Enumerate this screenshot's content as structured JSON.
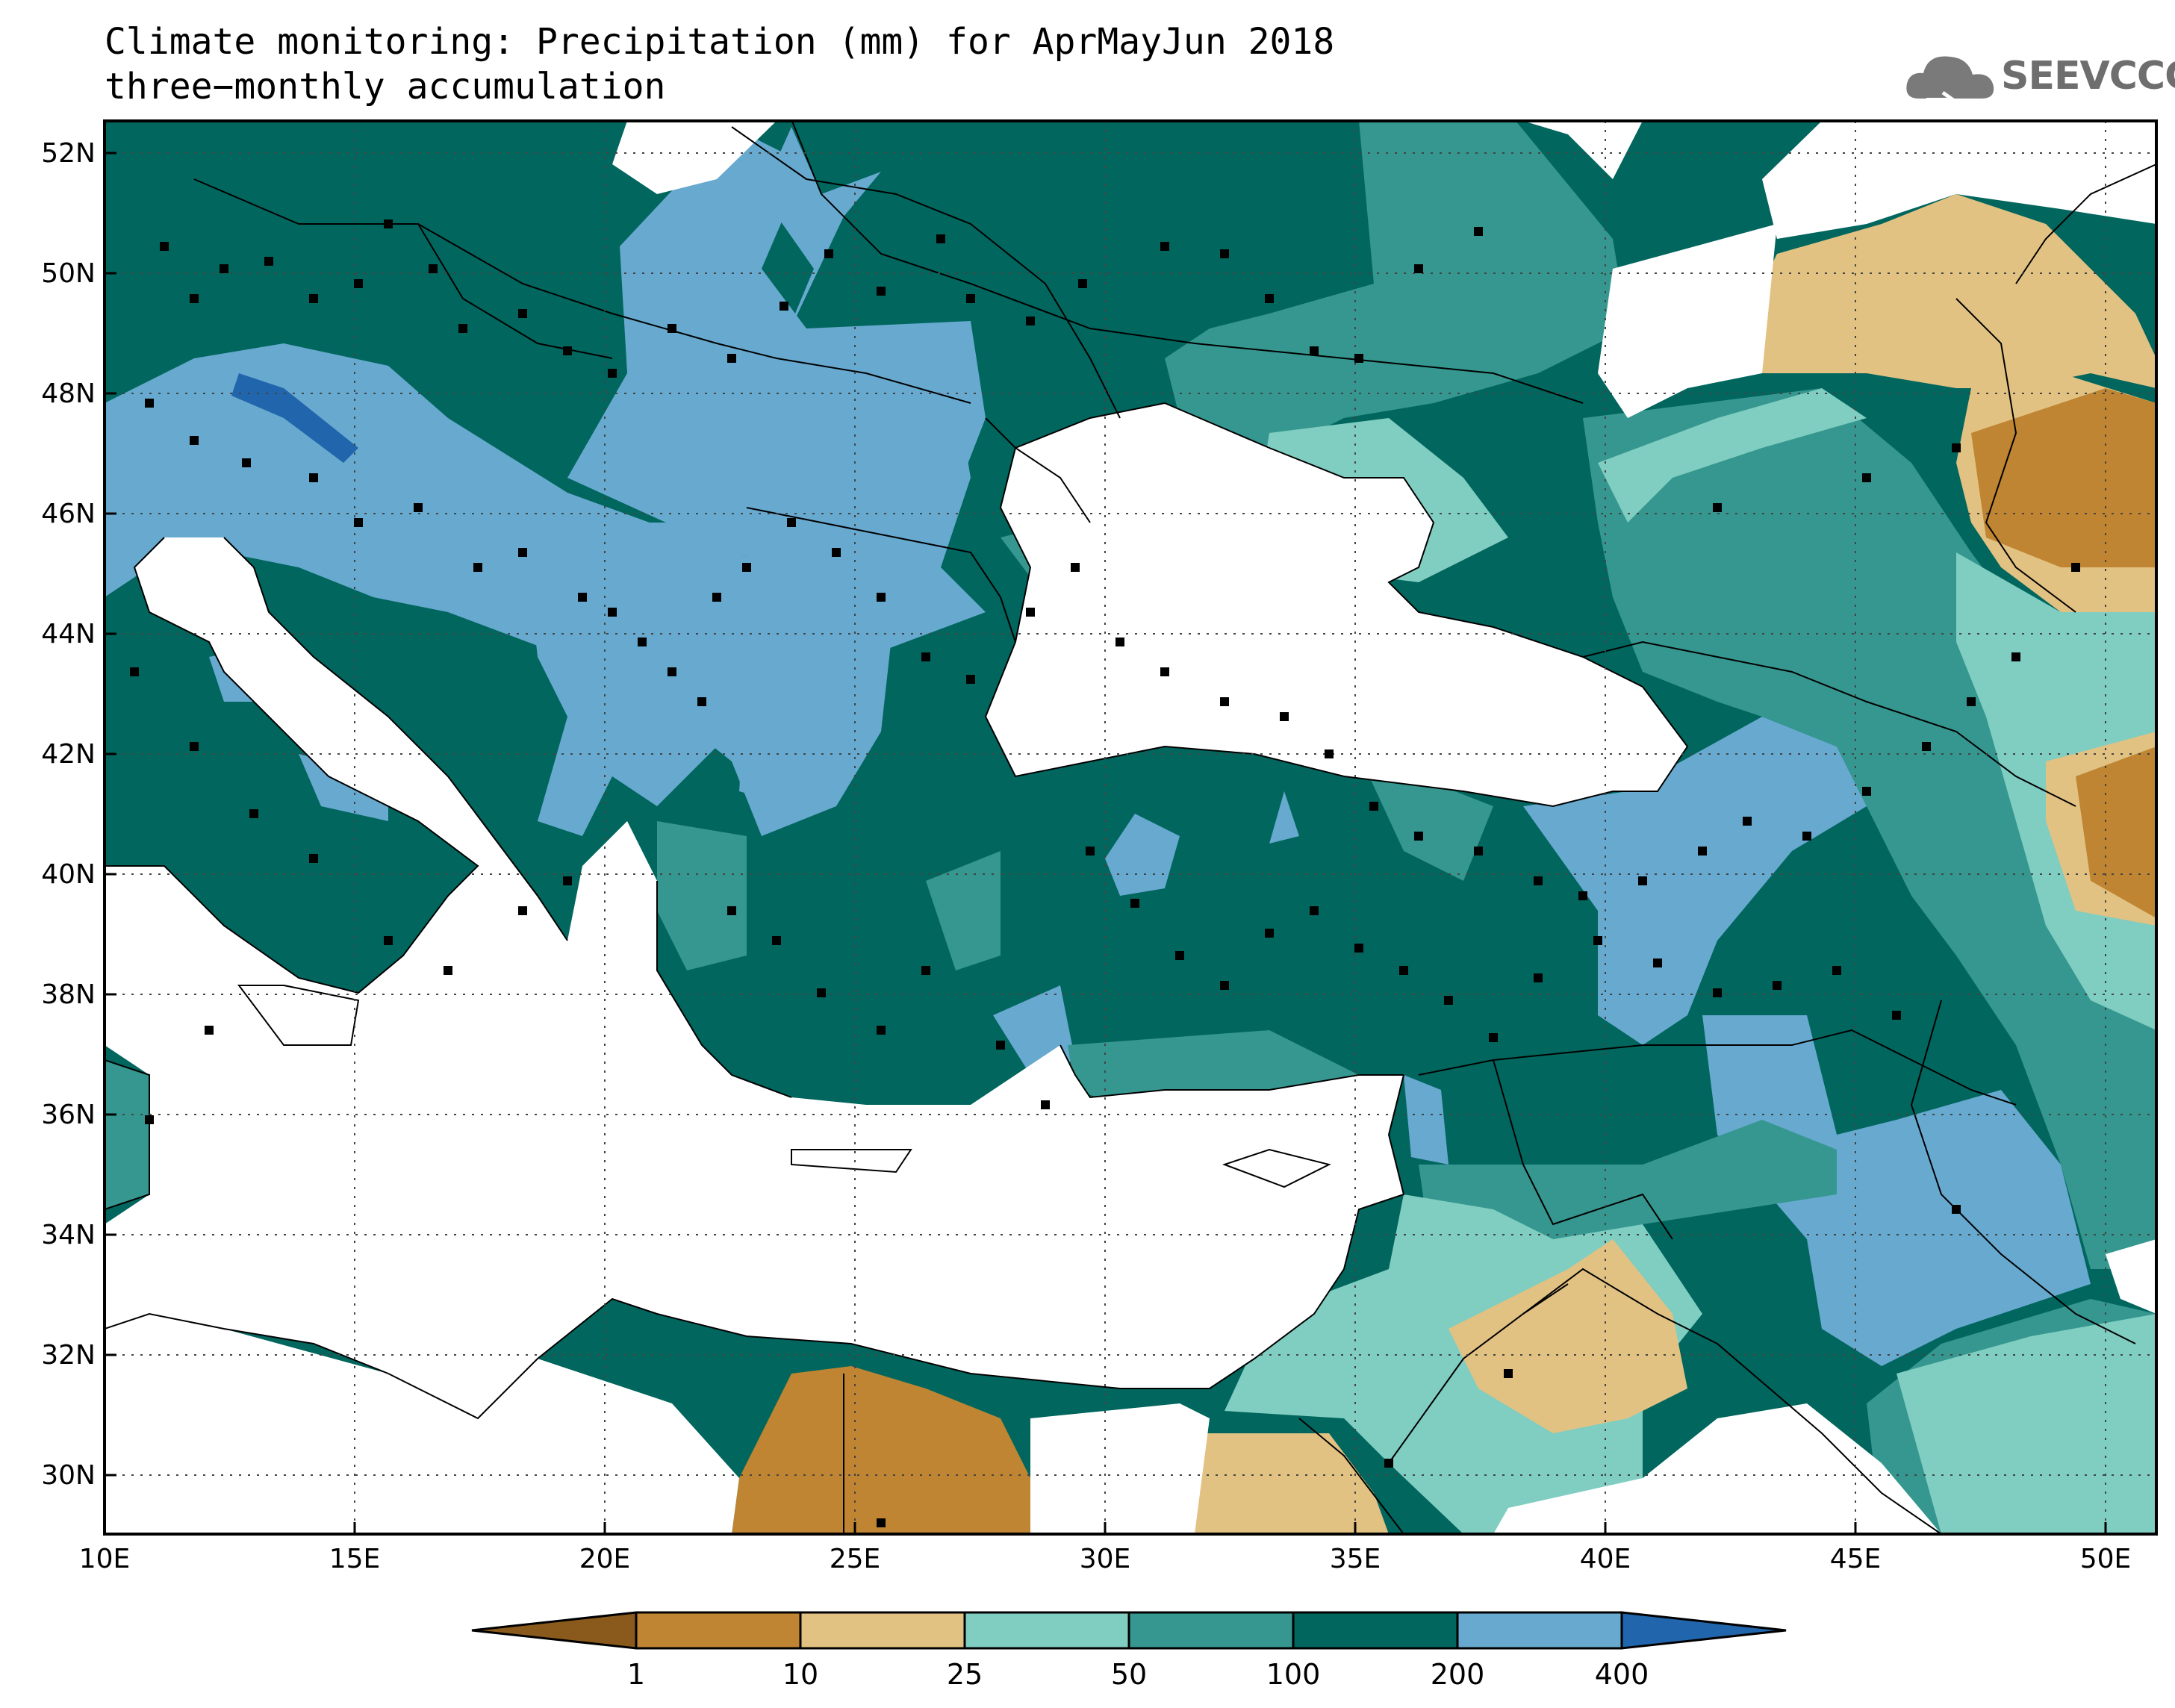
{
  "title": {
    "line1": "Climate monitoring: Precipitation (mm) for AprMayJun 2018",
    "line2": "three−monthly accumulation"
  },
  "logo": {
    "text": "SEEVCCC",
    "icon": "cloud-icon"
  },
  "axes": {
    "lat_labels": [
      "52N",
      "50N",
      "48N",
      "46N",
      "44N",
      "42N",
      "40N",
      "38N",
      "36N",
      "34N",
      "32N",
      "30N"
    ],
    "lon_labels": [
      "10E",
      "15E",
      "20E",
      "25E",
      "30E",
      "35E",
      "40E",
      "45E",
      "50E"
    ],
    "lon_range": [
      10,
      51
    ],
    "lat_range": [
      29,
      52.5
    ]
  },
  "colorbar": {
    "labels": [
      "1",
      "10",
      "25",
      "50",
      "100",
      "200",
      "400"
    ],
    "colors": [
      "#8a5a1c",
      "#bf8532",
      "#e2c282",
      "#80cdc1",
      "#35978f",
      "#01665e",
      "#67a9cf",
      "#2166ac"
    ]
  }
}
